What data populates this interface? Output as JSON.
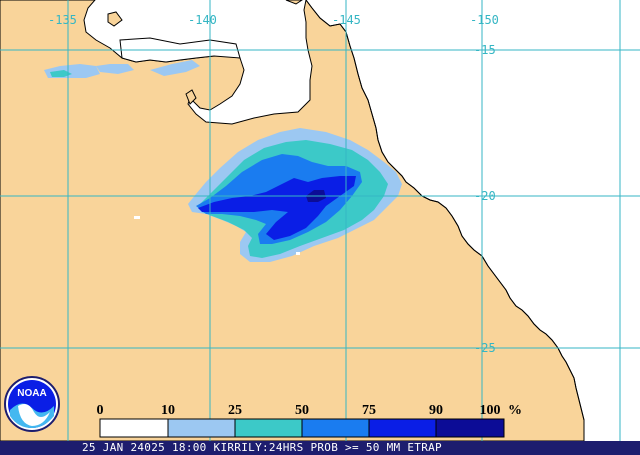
{
  "map": {
    "longitude_labels": [
      "-135",
      "-140",
      "-145",
      "-150"
    ],
    "latitude_labels": [
      "-15",
      "-20",
      "-25"
    ],
    "colors": {
      "land": "#f9d49a",
      "sea": "#ffffff",
      "coast": "#000000",
      "grid": "#35b6c4",
      "prob_10": "#9cc8f2",
      "prob_25": "#3cc9c8",
      "prob_50": "#1a7cf0",
      "prob_75": "#0a1ee6",
      "prob_90": "#0c0c96"
    }
  },
  "legend": {
    "tick_labels": [
      "0",
      "10",
      "25",
      "50",
      "75",
      "90",
      "100"
    ],
    "unit": "%",
    "bins": [
      {
        "from": "0",
        "to": "10",
        "color": "#ffffff"
      },
      {
        "from": "10",
        "to": "25",
        "color": "#9cc8f2"
      },
      {
        "from": "25",
        "to": "50",
        "color": "#3cc9c8"
      },
      {
        "from": "50",
        "to": "75",
        "color": "#1a7cf0"
      },
      {
        "from": "75",
        "to": "90",
        "color": "#0a1ee6"
      },
      {
        "from": "90",
        "to": "100",
        "color": "#0c0c96"
      }
    ]
  },
  "caption": {
    "text": "25 JAN 24025 18:00 KIRRILY:24HRS PROB >= 50 MM ETRAP"
  },
  "logo": {
    "text": "NOAA",
    "icon": "noaa-logo-icon"
  }
}
